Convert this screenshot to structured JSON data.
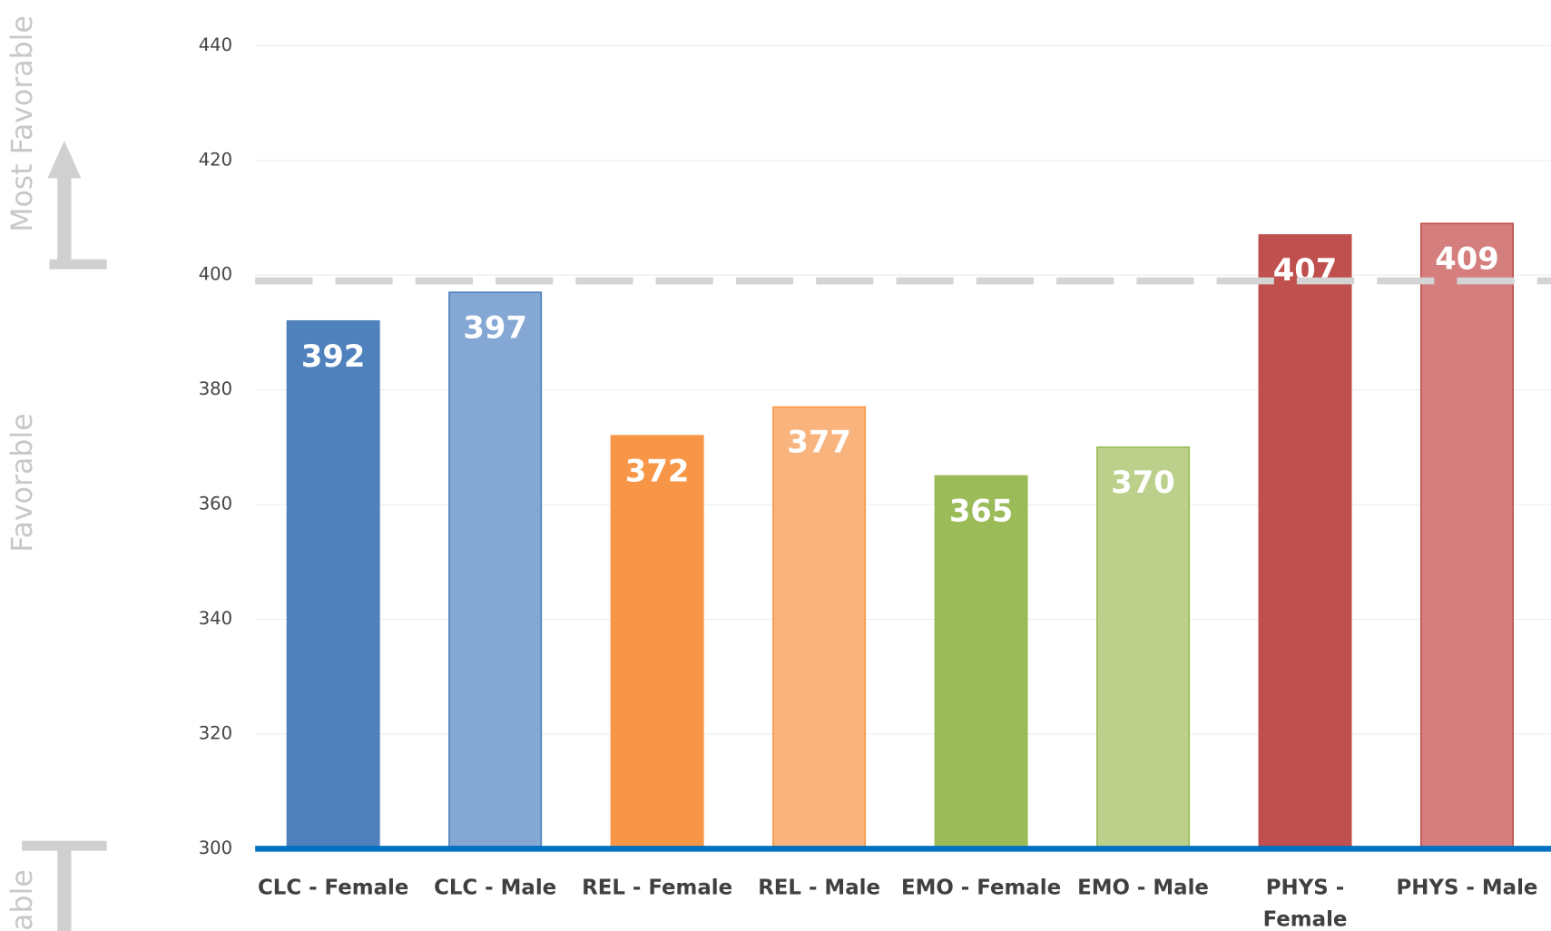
{
  "chart_data": {
    "type": "bar",
    "categories": [
      "CLC - Female",
      "CLC - Male",
      "REL - Female",
      "REL - Male",
      "EMO - Female",
      "EMO - Male",
      "PHYS - Female",
      "PHYS - Male"
    ],
    "values": [
      392,
      397,
      372,
      377,
      365,
      370,
      407,
      409
    ],
    "colors": [
      "#4f81bd",
      "#84a7d3",
      "#f79646",
      "#f9b47e",
      "#9bbb59",
      "#bcd08b",
      "#c0504d",
      "#d47f7e"
    ],
    "border_colors": [
      "#4f81bd",
      "#4f81bd",
      "#f79646",
      "#f79646",
      "#9bbb59",
      "#9bbb59",
      "#c0504d",
      "#c0504d"
    ],
    "ylim": [
      300,
      440
    ],
    "yticks": [
      300,
      320,
      340,
      360,
      380,
      400,
      420,
      440
    ],
    "grid": true,
    "reference_line": 399,
    "side_labels": [
      "Most Favorable",
      "Favorable",
      "able"
    ]
  }
}
